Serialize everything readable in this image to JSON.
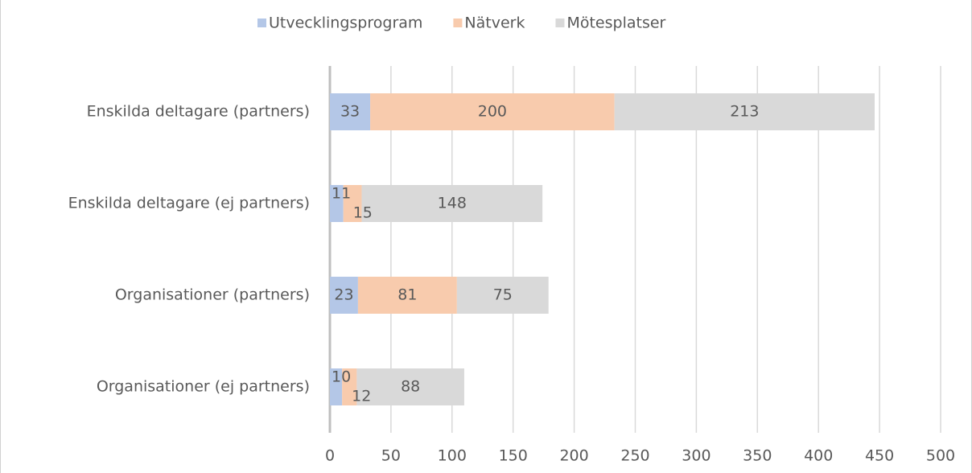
{
  "chart_data": {
    "type": "stacked-bar-horizontal",
    "categories": [
      "Enskilda deltagare (partners)",
      "Enskilda deltagare (ej partners)",
      "Organisationer (partners)",
      "Organisationer (ej partners)"
    ],
    "series": [
      {
        "name": "Utvecklingsprogram",
        "color": "#b4c7e7",
        "values": [
          33,
          11,
          23,
          10
        ]
      },
      {
        "name": "Nätverk",
        "color": "#f8cbad",
        "values": [
          200,
          15,
          81,
          12
        ]
      },
      {
        "name": "Mötesplatser",
        "color": "#d9d9d9",
        "values": [
          213,
          148,
          75,
          88
        ]
      }
    ],
    "xlim": [
      0,
      500
    ],
    "xticks": [
      0,
      50,
      100,
      150,
      200,
      250,
      300,
      350,
      400,
      450,
      500
    ],
    "grid": true,
    "legend": "top"
  }
}
